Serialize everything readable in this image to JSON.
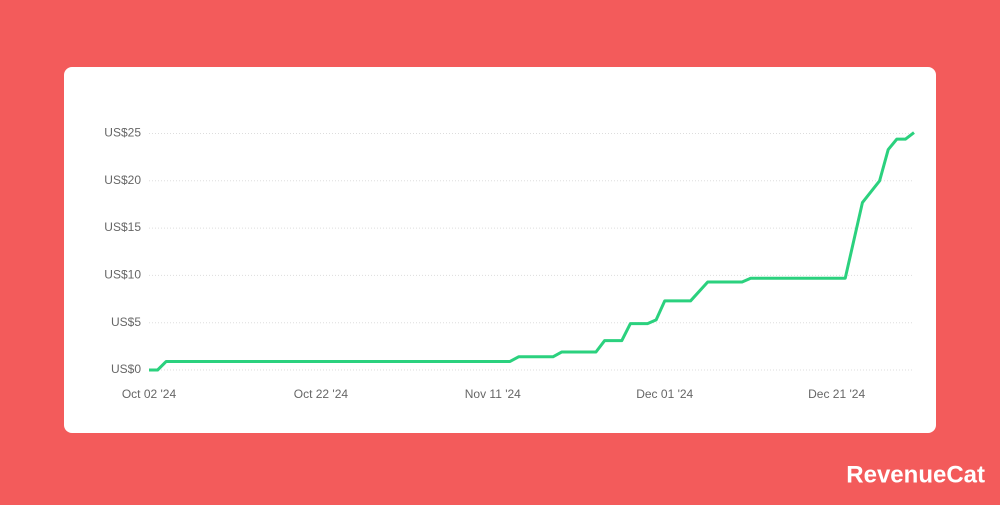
{
  "chart_data": {
    "type": "line",
    "x": [
      "2024-10-02",
      "2024-10-03",
      "2024-10-04",
      "2024-11-13",
      "2024-11-14",
      "2024-11-18",
      "2024-11-19",
      "2024-11-23",
      "2024-11-24",
      "2024-11-26",
      "2024-11-27",
      "2024-11-29",
      "2024-11-30",
      "2024-12-01",
      "2024-12-04",
      "2024-12-06",
      "2024-12-10",
      "2024-12-11",
      "2024-12-22",
      "2024-12-24",
      "2024-12-26",
      "2024-12-27",
      "2024-12-28",
      "2024-12-29",
      "2024-12-30"
    ],
    "values": [
      0,
      0,
      0.9,
      0.9,
      1.4,
      1.4,
      1.9,
      1.9,
      3.1,
      3.1,
      4.9,
      4.9,
      5.3,
      7.3,
      7.3,
      9.3,
      9.3,
      9.7,
      9.7,
      17.7,
      20.0,
      23.3,
      24.4,
      24.4,
      25.1
    ],
    "color": "#2bd17e",
    "xlim": [
      "2024-10-02",
      "2024-12-30"
    ],
    "xticks": [
      {
        "value": "2024-10-02",
        "label": "Oct 02 '24"
      },
      {
        "value": "2024-10-22",
        "label": "Oct 22 '24"
      },
      {
        "value": "2024-11-11",
        "label": "Nov 11 '24"
      },
      {
        "value": "2024-12-01",
        "label": "Dec 01 '24"
      },
      {
        "value": "2024-12-21",
        "label": "Dec 21 '24"
      }
    ],
    "ylim": [
      0,
      26
    ],
    "yticks": [
      {
        "value": 0,
        "label": "US$0"
      },
      {
        "value": 5,
        "label": "US$5"
      },
      {
        "value": 10,
        "label": "US$10"
      },
      {
        "value": 15,
        "label": "US$15"
      },
      {
        "value": 20,
        "label": "US$20"
      },
      {
        "value": 25,
        "label": "US$25"
      }
    ],
    "grid": true
  },
  "brand": "RevenueCat"
}
